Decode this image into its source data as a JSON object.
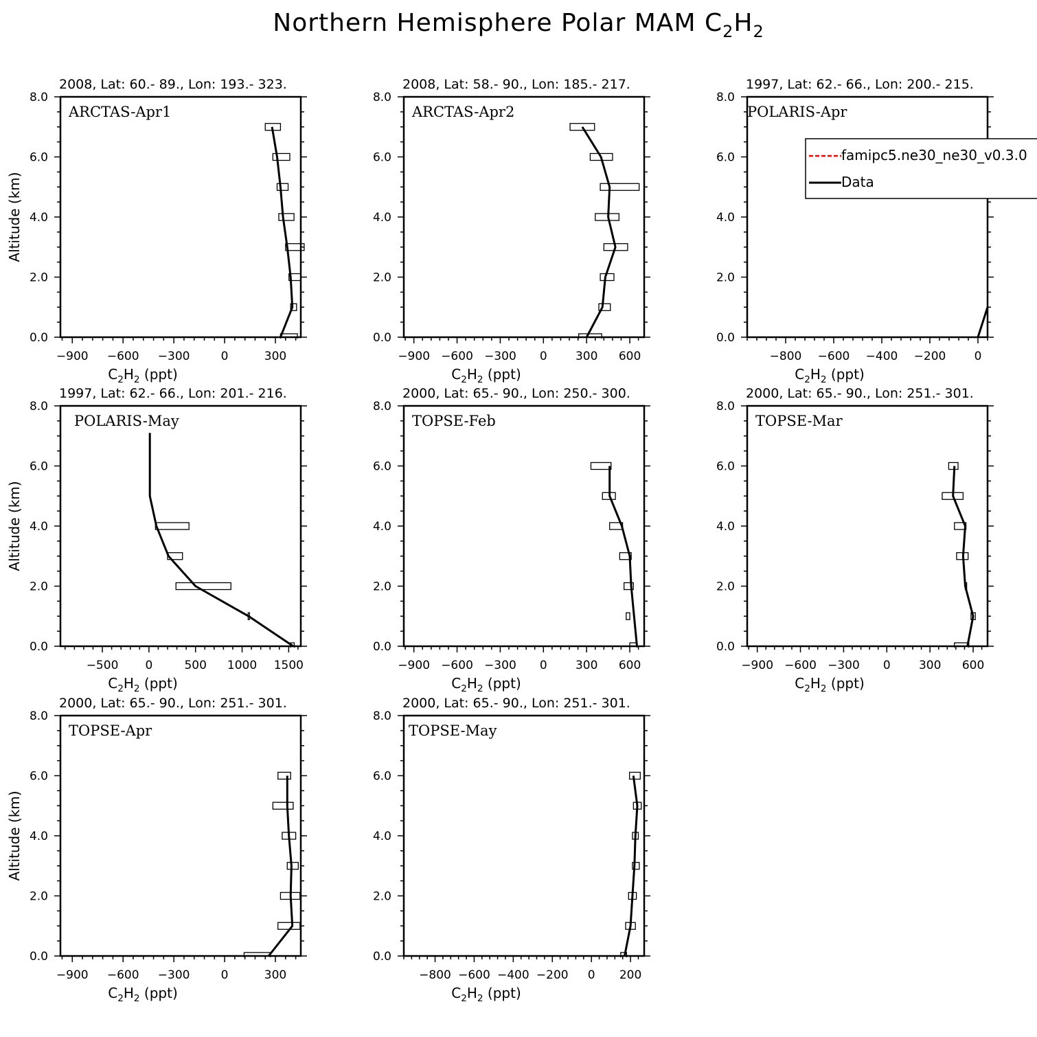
{
  "title": "Northern Hemisphere Polar MAM C",
  "title_sub1": "2",
  "title_mid": "H",
  "title_sub2": "2",
  "legend": {
    "model_label": "famipc5.ne30_ne30_v0.3.0",
    "model_color": "#ff0000",
    "data_label": "Data",
    "data_color": "#000000"
  },
  "chart_data": [
    {
      "type": "line",
      "campaign": "ARCTAS-Apr1",
      "header": "2008, Lat:  60.- 89., Lon: 193.- 323.",
      "xlabel": "C2H2 (ppt)",
      "ylabel": "Altitude (km)",
      "xlim": [
        -970,
        450
      ],
      "xticks": [
        -900,
        -600,
        -300,
        0,
        300
      ],
      "ylim": [
        0,
        8
      ],
      "yticks": [
        0.0,
        2.0,
        4.0,
        6.0,
        8.0
      ],
      "points": [
        [
          330,
          0
        ],
        [
          400,
          1
        ],
        [
          390,
          2
        ],
        [
          370,
          3
        ],
        [
          345,
          4
        ],
        [
          330,
          5
        ],
        [
          310,
          6
        ],
        [
          280,
          7
        ]
      ],
      "boxes": [
        [
          330,
          430,
          0
        ],
        [
          390,
          425,
          1
        ],
        [
          380,
          450,
          2
        ],
        [
          360,
          470,
          3
        ],
        [
          320,
          410,
          4
        ],
        [
          310,
          375,
          5
        ],
        [
          285,
          385,
          6
        ],
        [
          240,
          330,
          7
        ]
      ]
    },
    {
      "type": "line",
      "campaign": "ARCTAS-Apr2",
      "header": "2008, Lat:  58.- 90., Lon: 185.- 217.",
      "xlabel": "C2H2 (ppt)",
      "ylabel": "",
      "xlim": [
        -970,
        700
      ],
      "xticks": [
        -900,
        -600,
        -300,
        0,
        300,
        600
      ],
      "ylim": [
        0,
        8
      ],
      "yticks": [
        0.0,
        2.0,
        4.0,
        6.0,
        8.0
      ],
      "points": [
        [
          300,
          0
        ],
        [
          410,
          1
        ],
        [
          430,
          2
        ],
        [
          500,
          3
        ],
        [
          450,
          4
        ],
        [
          460,
          5
        ],
        [
          400,
          6
        ],
        [
          270,
          7
        ]
      ],
      "boxes": [
        [
          245,
          405,
          0
        ],
        [
          385,
          465,
          1
        ],
        [
          395,
          490,
          2
        ],
        [
          420,
          585,
          3
        ],
        [
          360,
          525,
          4
        ],
        [
          395,
          665,
          5
        ],
        [
          325,
          480,
          6
        ],
        [
          185,
          355,
          7
        ]
      ]
    },
    {
      "type": "line",
      "campaign": "POLARIS-Apr",
      "header": "1997, Lat: 62.- 66., Lon: 200.- 215.",
      "xlabel": "C2H2 (ppt)",
      "ylabel": "",
      "xlim": [
        -960,
        40
      ],
      "xticks": [
        -800,
        -600,
        -400,
        -200,
        0
      ],
      "ylim": [
        0,
        8
      ],
      "yticks": [
        0.0,
        2.0,
        4.0,
        6.0,
        8.0
      ],
      "points": [
        [
          0,
          0
        ],
        [
          40,
          1
        ]
      ],
      "boxes": [],
      "has_legend": true
    },
    {
      "type": "line",
      "campaign": "POLARIS-May",
      "header": "1997, Lat: 62.- 66., Lon: 201.- 216.",
      "xlabel": "C2H2 (ppt)",
      "ylabel": "Altitude (km)",
      "xlim": [
        -950,
        1630
      ],
      "xticks": [
        -500,
        0,
        500,
        1000,
        1500
      ],
      "ylim": [
        0,
        8
      ],
      "yticks": [
        0.0,
        2.0,
        4.0,
        6.0,
        8.0
      ],
      "points": [
        [
          1550,
          0
        ],
        [
          1070,
          1
        ],
        [
          500,
          2
        ],
        [
          210,
          3
        ],
        [
          80,
          4
        ],
        [
          10,
          5
        ],
        [
          10,
          6
        ],
        [
          10,
          7.1
        ]
      ],
      "boxes": [
        [
          1520,
          1560,
          0
        ],
        [
          1065,
          1075,
          1
        ],
        [
          290,
          880,
          2
        ],
        [
          200,
          360,
          3
        ],
        [
          70,
          430,
          4
        ]
      ]
    },
    {
      "type": "line",
      "campaign": "TOPSE-Feb",
      "header": "2000, Lat: 65.- 90., Lon: 250.- 300.",
      "xlabel": "C2H2 (ppt)",
      "ylabel": "",
      "xlim": [
        -970,
        700
      ],
      "xticks": [
        -900,
        -600,
        -300,
        0,
        300,
        600
      ],
      "ylim": [
        0,
        8
      ],
      "yticks": [
        0.0,
        2.0,
        4.0,
        6.0,
        8.0
      ],
      "points": [
        [
          650,
          0
        ],
        [
          630,
          1
        ],
        [
          610,
          2
        ],
        [
          600,
          3
        ],
        [
          545,
          4
        ],
        [
          460,
          5
        ],
        [
          460,
          6
        ]
      ],
      "boxes": [
        [
          600,
          650,
          0
        ],
        [
          575,
          600,
          1
        ],
        [
          560,
          625,
          2
        ],
        [
          530,
          610,
          3
        ],
        [
          460,
          550,
          4
        ],
        [
          410,
          500,
          5
        ],
        [
          330,
          470,
          6
        ]
      ]
    },
    {
      "type": "line",
      "campaign": "TOPSE-Mar",
      "header": "2000, Lat: 65.- 90., Lon: 251.- 301.",
      "xlabel": "C2H2 (ppt)",
      "ylabel": "",
      "xlim": [
        -970,
        700
      ],
      "xticks": [
        -900,
        -600,
        -300,
        0,
        300,
        600
      ],
      "ylim": [
        0,
        8
      ],
      "yticks": [
        0.0,
        2.0,
        4.0,
        6.0,
        8.0
      ],
      "points": [
        [
          560,
          0
        ],
        [
          600,
          1
        ],
        [
          545,
          2
        ],
        [
          530,
          3
        ],
        [
          545,
          4
        ],
        [
          460,
          5
        ],
        [
          470,
          6
        ]
      ],
      "boxes": [
        [
          470,
          570,
          0
        ],
        [
          585,
          615,
          1
        ],
        [
          545,
          555,
          2
        ],
        [
          485,
          565,
          3
        ],
        [
          470,
          550,
          4
        ],
        [
          385,
          530,
          5
        ],
        [
          430,
          495,
          6
        ]
      ]
    },
    {
      "type": "line",
      "campaign": "TOPSE-Apr",
      "header": "2000, Lat: 65.- 90., Lon: 251.- 301.",
      "xlabel": "C2H2 (ppt)",
      "ylabel": "Altitude (km)",
      "xlim": [
        -970,
        450
      ],
      "xticks": [
        -900,
        -600,
        -300,
        0,
        300
      ],
      "ylim": [
        0,
        8
      ],
      "yticks": [
        0.0,
        2.0,
        4.0,
        6.0,
        8.0
      ],
      "points": [
        [
          260,
          0
        ],
        [
          400,
          1
        ],
        [
          390,
          2
        ],
        [
          395,
          3
        ],
        [
          380,
          4
        ],
        [
          370,
          5
        ],
        [
          370,
          6
        ]
      ],
      "boxes": [
        [
          115,
          270,
          0
        ],
        [
          315,
          445,
          1
        ],
        [
          330,
          445,
          2
        ],
        [
          370,
          435,
          3
        ],
        [
          340,
          420,
          4
        ],
        [
          285,
          405,
          5
        ],
        [
          315,
          390,
          6
        ]
      ]
    },
    {
      "type": "line",
      "campaign": "TOPSE-May",
      "header": "2000, Lat: 65.- 90., Lon: 251.- 301.",
      "xlabel": "C2H2 (ppt)",
      "ylabel": "",
      "xlim": [
        -960,
        270
      ],
      "xticks": [
        -800,
        -600,
        -400,
        -200,
        0,
        200
      ],
      "ylim": [
        0,
        8
      ],
      "yticks": [
        0.0,
        2.0,
        4.0,
        6.0,
        8.0
      ],
      "points": [
        [
          170,
          0
        ],
        [
          200,
          1
        ],
        [
          210,
          2
        ],
        [
          220,
          3
        ],
        [
          225,
          4
        ],
        [
          235,
          5
        ],
        [
          215,
          6
        ]
      ],
      "boxes": [
        [
          150,
          180,
          0
        ],
        [
          175,
          225,
          1
        ],
        [
          190,
          230,
          2
        ],
        [
          210,
          245,
          3
        ],
        [
          210,
          240,
          4
        ],
        [
          215,
          255,
          5
        ],
        [
          195,
          250,
          6
        ]
      ]
    }
  ]
}
